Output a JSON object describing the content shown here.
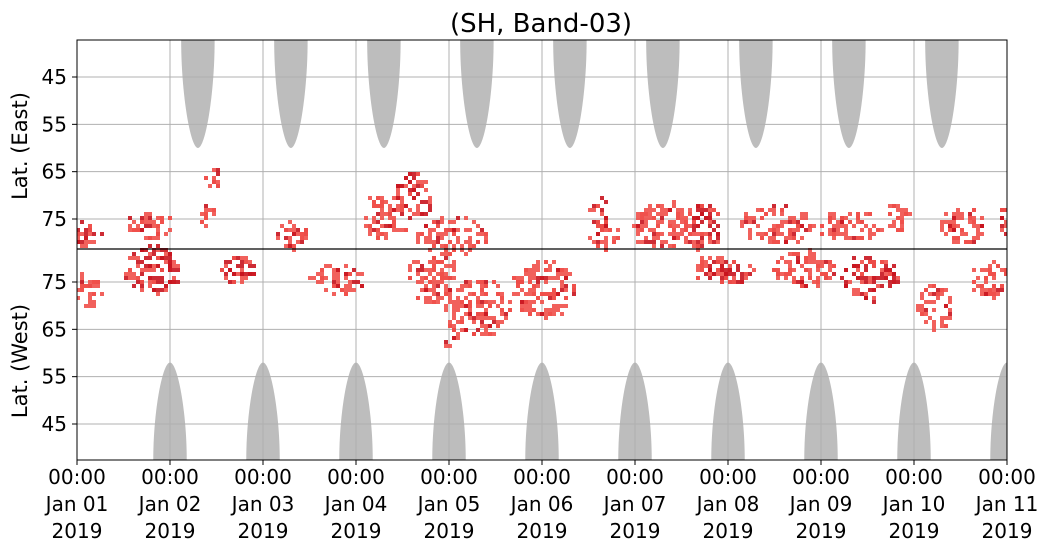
{
  "chart_data": {
    "type": "heatmap",
    "title": "(SH, Band-03)",
    "ylabel_east": "Lat. (East)",
    "ylabel_west": "Lat. (West)",
    "x_range": [
      "2019-01-01 00:00",
      "2019-01-11 00:00"
    ],
    "x_ticks": [
      {
        "time": "00:00",
        "date": "Jan 01",
        "year": "2019"
      },
      {
        "time": "00:00",
        "date": "Jan 02",
        "year": "2019"
      },
      {
        "time": "00:00",
        "date": "Jan 03",
        "year": "2019"
      },
      {
        "time": "00:00",
        "date": "Jan 04",
        "year": "2019"
      },
      {
        "time": "00:00",
        "date": "Jan 05",
        "year": "2019"
      },
      {
        "time": "00:00",
        "date": "Jan 06",
        "year": "2019"
      },
      {
        "time": "00:00",
        "date": "Jan 07",
        "year": "2019"
      },
      {
        "time": "00:00",
        "date": "Jan 08",
        "year": "2019"
      },
      {
        "time": "00:00",
        "date": "Jan 09",
        "year": "2019"
      },
      {
        "time": "00:00",
        "date": "Jan 10",
        "year": "2019"
      },
      {
        "time": "00:00",
        "date": "Jan 11",
        "year": "2019"
      }
    ],
    "y_ticks_east": [
      "45",
      "55",
      "65",
      "75"
    ],
    "y_ticks_west": [
      "75",
      "65",
      "55",
      "45"
    ],
    "grid": true,
    "colors": {
      "night_mask": "#bdbdbd",
      "band_light": "#f0504a",
      "band_dark": "#c8141e",
      "center_line": "#000000",
      "grid": "#b0b0b0"
    },
    "night_shading": {
      "east_tops": [
        1.3,
        2.3,
        3.3,
        4.3,
        5.3,
        6.3,
        7.3,
        8.3,
        9.3
      ],
      "west_bottoms": [
        1.0,
        2.0,
        3.0,
        4.0,
        5.0,
        6.0,
        7.0,
        8.0,
        9.0,
        10.0
      ],
      "east_extent_lat": 60,
      "west_extent_lat": 58
    },
    "activity_blobs": [
      {
        "day": 0.05,
        "lat": 78,
        "side": "east",
        "width": 0.4,
        "height": 5,
        "intensity": "dark"
      },
      {
        "day": 0.1,
        "lat": 74,
        "side": "west",
        "width": 0.3,
        "height": 8,
        "intensity": "light"
      },
      {
        "day": 0.8,
        "lat": 78,
        "side": "west",
        "width": 0.6,
        "height": 10,
        "intensity": "dark"
      },
      {
        "day": 0.75,
        "lat": 76,
        "side": "east",
        "width": 0.5,
        "height": 6,
        "intensity": "light"
      },
      {
        "day": 1.45,
        "lat": 66,
        "side": "east",
        "width": 0.2,
        "height": 4,
        "intensity": "light"
      },
      {
        "day": 1.4,
        "lat": 74,
        "side": "east",
        "width": 0.15,
        "height": 5,
        "intensity": "light"
      },
      {
        "day": 1.7,
        "lat": 78,
        "side": "west",
        "width": 0.4,
        "height": 6,
        "intensity": "dark"
      },
      {
        "day": 2.3,
        "lat": 78,
        "side": "east",
        "width": 0.3,
        "height": 6,
        "intensity": "light"
      },
      {
        "day": 2.8,
        "lat": 76,
        "side": "west",
        "width": 0.6,
        "height": 6,
        "intensity": "light"
      },
      {
        "day": 3.3,
        "lat": 74,
        "side": "east",
        "width": 0.5,
        "height": 10,
        "intensity": "light"
      },
      {
        "day": 3.6,
        "lat": 70,
        "side": "east",
        "width": 0.4,
        "height": 10,
        "intensity": "dark"
      },
      {
        "day": 3.8,
        "lat": 76,
        "side": "west",
        "width": 0.6,
        "height": 10,
        "intensity": "light"
      },
      {
        "day": 4.0,
        "lat": 78,
        "side": "east",
        "width": 0.8,
        "height": 8,
        "intensity": "light"
      },
      {
        "day": 4.3,
        "lat": 70,
        "side": "west",
        "width": 0.7,
        "height": 12,
        "intensity": "light"
      },
      {
        "day": 4.0,
        "lat": 64,
        "side": "west",
        "width": 0.15,
        "height": 6,
        "intensity": "light"
      },
      {
        "day": 5.0,
        "lat": 74,
        "side": "west",
        "width": 0.7,
        "height": 12,
        "intensity": "light"
      },
      {
        "day": 5.65,
        "lat": 78,
        "side": "east",
        "width": 0.3,
        "height": 6,
        "intensity": "light"
      },
      {
        "day": 5.6,
        "lat": 74,
        "side": "east",
        "width": 0.2,
        "height": 8,
        "intensity": "dark"
      },
      {
        "day": 6.3,
        "lat": 76,
        "side": "east",
        "width": 0.7,
        "height": 10,
        "intensity": "light"
      },
      {
        "day": 6.8,
        "lat": 78,
        "side": "west",
        "width": 0.4,
        "height": 6,
        "intensity": "light"
      },
      {
        "day": 6.7,
        "lat": 76,
        "side": "east",
        "width": 0.4,
        "height": 10,
        "intensity": "dark"
      },
      {
        "day": 7.0,
        "lat": 78,
        "side": "west",
        "width": 0.5,
        "height": 6,
        "intensity": "dark"
      },
      {
        "day": 7.5,
        "lat": 76,
        "side": "east",
        "width": 0.8,
        "height": 8,
        "intensity": "light"
      },
      {
        "day": 7.8,
        "lat": 78,
        "side": "west",
        "width": 0.7,
        "height": 8,
        "intensity": "light"
      },
      {
        "day": 8.3,
        "lat": 76,
        "side": "east",
        "width": 0.7,
        "height": 6,
        "intensity": "light"
      },
      {
        "day": 8.5,
        "lat": 76,
        "side": "west",
        "width": 0.6,
        "height": 10,
        "intensity": "dark"
      },
      {
        "day": 8.8,
        "lat": 74,
        "side": "east",
        "width": 0.3,
        "height": 6,
        "intensity": "light"
      },
      {
        "day": 9.2,
        "lat": 70,
        "side": "west",
        "width": 0.4,
        "height": 10,
        "intensity": "light"
      },
      {
        "day": 9.5,
        "lat": 76,
        "side": "east",
        "width": 0.5,
        "height": 8,
        "intensity": "light"
      },
      {
        "day": 9.8,
        "lat": 76,
        "side": "west",
        "width": 0.4,
        "height": 8,
        "intensity": "light"
      },
      {
        "day": 9.95,
        "lat": 74,
        "side": "east",
        "width": 0.1,
        "height": 8,
        "intensity": "dark"
      }
    ]
  }
}
